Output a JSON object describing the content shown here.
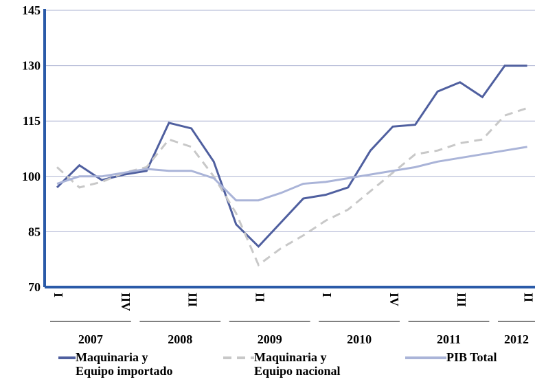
{
  "chart_data": {
    "type": "line",
    "categories": [
      "I",
      null,
      null,
      "IIV",
      null,
      null,
      "III",
      null,
      null,
      "II",
      null,
      null,
      "I",
      null,
      null,
      "IV",
      null,
      null,
      "III",
      null,
      null,
      "II"
    ],
    "year_groups": [
      "2007",
      "2008",
      "2009",
      "2010",
      "2011",
      "2012"
    ],
    "series": [
      {
        "name": "Maquinaria y\nEquipo importado",
        "color": "#4f5f9f",
        "dashed": false,
        "values": [
          97,
          103,
          99,
          100.5,
          101.5,
          114.5,
          113,
          104,
          87,
          81,
          87.5,
          94,
          95,
          97,
          107,
          113.5,
          114,
          123,
          125.5,
          121.5,
          130,
          130
        ]
      },
      {
        "name": "Maquinaria y\nEquipo nacional",
        "color": "#c8c8c8",
        "dashed": true,
        "values": [
          102.5,
          97,
          98.5,
          101,
          102.5,
          110,
          108,
          100,
          90,
          76,
          80.5,
          84,
          88,
          91,
          96,
          101,
          106,
          107,
          109,
          110,
          116.5,
          118.5
        ]
      },
      {
        "name": "PIB Total",
        "color": "#aab4d8",
        "dashed": false,
        "values": [
          98,
          100,
          100,
          101,
          102,
          101.5,
          101.5,
          99.5,
          93.5,
          93.5,
          95.5,
          98,
          98.5,
          99.5,
          100.5,
          101.5,
          102.5,
          104,
          105,
          106,
          107,
          108
        ]
      }
    ],
    "ylim": [
      70,
      145
    ],
    "yticks": [
      70,
      85,
      100,
      115,
      130,
      145
    ],
    "grid": true
  }
}
